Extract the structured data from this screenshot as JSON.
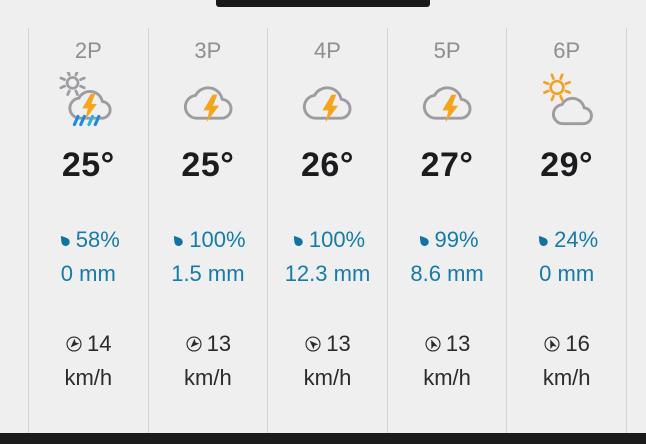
{
  "page": {
    "top_clipped_bar_color": "#191919",
    "bottom_bar_color": "#1b1b1b",
    "background": "#efeff0"
  },
  "colors": {
    "divider": "#d3d3d5",
    "time_label": "#8e8e93",
    "temperature": "#1c1c1e",
    "precip_text": "#157ba8",
    "droplet": "#1273a0",
    "wind_text": "#2b2b2b",
    "cloud_stroke": "#9d9da1",
    "sun_gray": "#9d9da1",
    "sun_amber": "#f0a32a",
    "lightning": "#f5a51d",
    "rain_blue": "#1e88e5",
    "rain_teal": "#2bb3d8"
  },
  "columns": [
    {
      "time": "2P",
      "icon": "thunderstorm-sun-rain",
      "temp": "25°",
      "precip_chance": "58%",
      "precip_amount": "0 mm",
      "wind_speed": "14",
      "wind_unit": "km/h",
      "wind_dir_deg": 225
    },
    {
      "time": "3P",
      "icon": "thunderstorm",
      "temp": "25°",
      "precip_chance": "100%",
      "precip_amount": "1.5 mm",
      "wind_speed": "13",
      "wind_unit": "km/h",
      "wind_dir_deg": 225
    },
    {
      "time": "4P",
      "icon": "thunderstorm",
      "temp": "26°",
      "precip_chance": "100%",
      "precip_amount": "12.3 mm",
      "wind_speed": "13",
      "wind_unit": "km/h",
      "wind_dir_deg": 315
    },
    {
      "time": "5P",
      "icon": "thunderstorm",
      "temp": "27°",
      "precip_chance": "99%",
      "precip_amount": "8.6 mm",
      "wind_speed": "13",
      "wind_unit": "km/h",
      "wind_dir_deg": 338
    },
    {
      "time": "6P",
      "icon": "partly-sunny",
      "temp": "29°",
      "precip_chance": "24%",
      "precip_amount": "0 mm",
      "wind_speed": "16",
      "wind_unit": "km/h",
      "wind_dir_deg": 338
    }
  ]
}
